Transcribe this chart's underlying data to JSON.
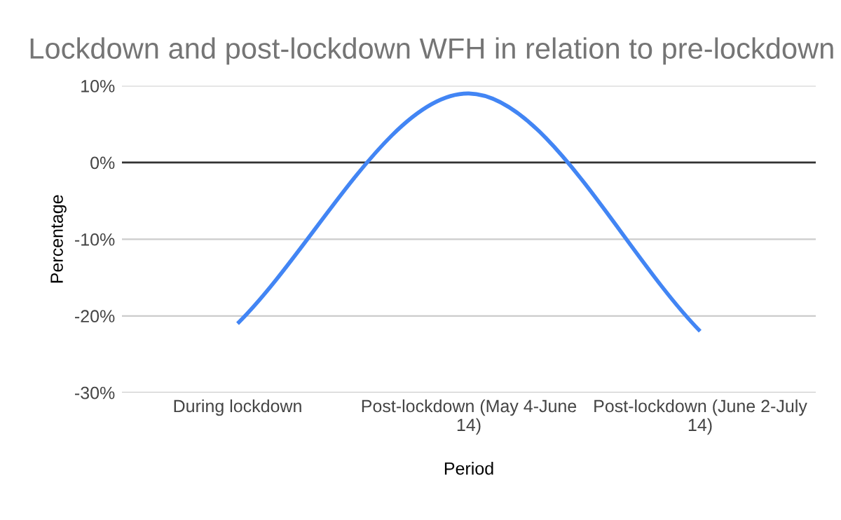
{
  "chart_data": {
    "type": "line",
    "title": "Lockdown and post-lockdown WFH in relation to pre-lockdown",
    "xlabel": "Period",
    "ylabel": "Percentage",
    "categories": [
      "During lockdown",
      "Post-lockdown (May 4-June 14)",
      "Post-lockdown (June 2-July 14)"
    ],
    "series": [
      {
        "color": "#4285f4",
        "values": [
          -21,
          9,
          -22
        ]
      }
    ],
    "ylim": [
      -30,
      10
    ],
    "yticks": [
      {
        "value": -30,
        "label": "-30%"
      },
      {
        "value": -20,
        "label": "-20%"
      },
      {
        "value": -10,
        "label": "-10%"
      },
      {
        "value": 0,
        "label": "0%"
      },
      {
        "value": 10,
        "label": "10%"
      }
    ],
    "grid": "y",
    "marker": "none",
    "line_style": "solid",
    "ref_lines": [
      {
        "axis": "y",
        "value": 0,
        "color": "#333333"
      }
    ]
  }
}
